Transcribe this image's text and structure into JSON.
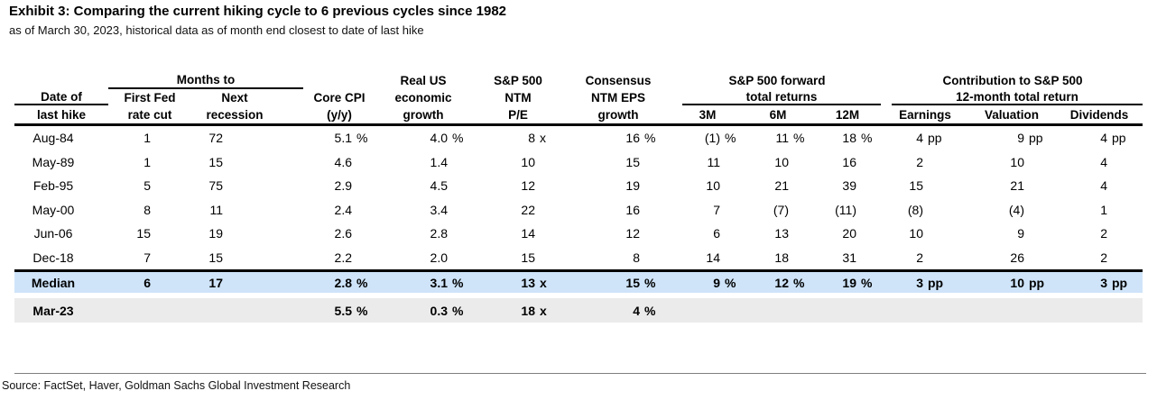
{
  "title": "Exhibit 3: Comparing the current hiking cycle to 6 previous cycles since 1982",
  "subtitle": "as of March 30, 2023, historical data as of month end closest to date of last hike",
  "source": "Source: FactSet, Haver, Goldman Sachs Global Investment Research",
  "colors": {
    "median_row_bg": "#cfe4f9",
    "current_row_bg": "#ebebeb",
    "rule_color": "#000000"
  },
  "header": {
    "date1": "Date of",
    "date2": "last hike",
    "months_to": "Months to",
    "ffr1": "First Fed",
    "ffr2": "rate cut",
    "next1": "Next",
    "next2": "recession",
    "cpi1": "Core CPI",
    "cpi2": "(y/y)",
    "rus1": "Real US",
    "rus2": "economic",
    "rus3": "growth",
    "spx1": "S&P 500",
    "spx2": "NTM",
    "spx3": "P/E",
    "cons1": "Consensus",
    "cons2": "NTM EPS",
    "cons3": "growth",
    "fwd1": "S&P 500 forward",
    "fwd2": "total returns",
    "m3": "3M",
    "m6": "6M",
    "m12": "12M",
    "contrib1": "Contribution to S&P 500",
    "contrib2": "12-month total return",
    "earnings": "Earnings",
    "valuation": "Valuation",
    "dividends": "Dividends"
  },
  "column_ids": [
    "first-fed-rate-cut",
    "next-recession",
    "core-cpi-yoy",
    "real-us-growth",
    "sp500-ntm-pe",
    "ntm-eps-growth",
    "fwd-return-3m",
    "fwd-return-6m",
    "fwd-return-12m",
    "contrib-earnings",
    "contrib-valuation",
    "contrib-dividends"
  ],
  "rows": [
    {
      "label": "Aug-84",
      "cells": [
        "1",
        "72",
        "5.1 %",
        "4.0 %",
        "8 x",
        "16 %",
        "(1)%",
        "11 %",
        "18 %",
        "4 pp",
        "9 pp",
        "4 pp"
      ]
    },
    {
      "label": "May-89",
      "cells": [
        "1",
        "15",
        "4.6",
        "1.4",
        "10",
        "15",
        "11",
        "10",
        "16",
        "2",
        "10",
        "4"
      ]
    },
    {
      "label": "Feb-95",
      "cells": [
        "5",
        "75",
        "2.9",
        "4.5",
        "12",
        "19",
        "10",
        "21",
        "39",
        "15",
        "21",
        "4"
      ]
    },
    {
      "label": "May-00",
      "cells": [
        "8",
        "11",
        "2.4",
        "3.4",
        "22",
        "16",
        "7",
        "(7)",
        "(11)",
        "(8)",
        "(4)",
        "1"
      ]
    },
    {
      "label": "Jun-06",
      "cells": [
        "15",
        "19",
        "2.6",
        "2.8",
        "14",
        "12",
        "6",
        "13",
        "20",
        "10",
        "9",
        "2"
      ]
    },
    {
      "label": "Dec-18",
      "cells": [
        "7",
        "15",
        "2.2",
        "2.0",
        "15",
        "8",
        "14",
        "18",
        "31",
        "2",
        "26",
        "2"
      ]
    }
  ],
  "median_row": {
    "label": "Median",
    "cells": [
      "6",
      "17",
      "2.8 %",
      "3.1 %",
      "13 x",
      "15 %",
      "9 %",
      "12 %",
      "19 %",
      "3 pp",
      "10 pp",
      "3 pp"
    ]
  },
  "current_row": {
    "label": "Mar-23",
    "cells": [
      "",
      "",
      "5.5 %",
      "0.3 %",
      "18 x",
      "4 %",
      "",
      "",
      "",
      "",
      "",
      ""
    ]
  }
}
